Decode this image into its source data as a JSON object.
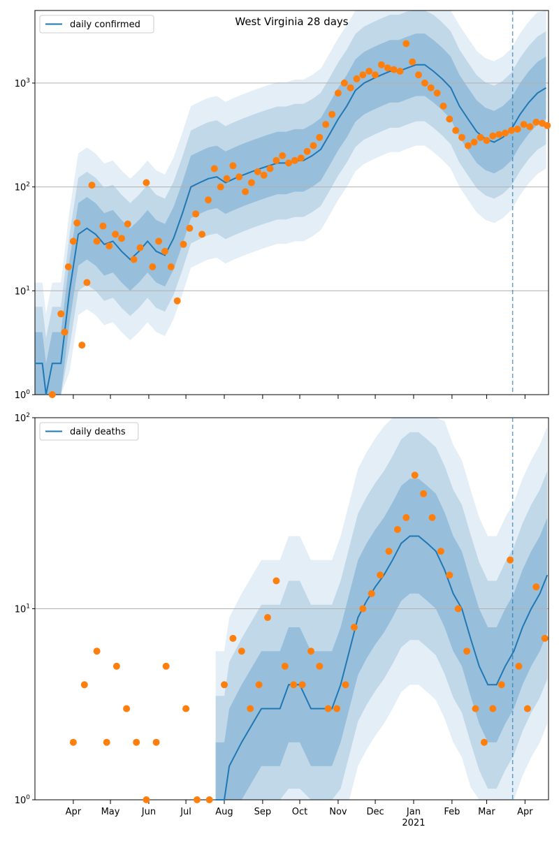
{
  "colors": {
    "line": "#1f77b4",
    "points": "#ff7f0e",
    "band": "#1f77b4",
    "grid": "#b0b0b0",
    "vline": "#1f77b4"
  },
  "chart_data": [
    {
      "type": "line",
      "title": "West Virginia 28 days",
      "scale": "log",
      "ylim": [
        1,
        5000
      ],
      "yticks": [
        {
          "value": 1,
          "label": "10^0"
        },
        {
          "value": 10,
          "label": "10^1"
        },
        {
          "value": 100,
          "label": "10^2"
        },
        {
          "value": 1000,
          "label": "10^3"
        }
      ],
      "grid": "horizontal",
      "legend": {
        "position": "top-left",
        "label": "daily confirmed"
      },
      "x_range": [
        "2020-03-01",
        "2021-04-20"
      ],
      "vline_date": "2021-03-22",
      "series": [
        {
          "name": "daily confirmed",
          "kind": "line",
          "x": [
            "2020-03-01",
            "2020-03-07",
            "2020-03-10",
            "2020-03-15",
            "2020-03-22",
            "2020-03-29",
            "2020-04-05",
            "2020-04-12",
            "2020-04-19",
            "2020-04-26",
            "2020-05-03",
            "2020-05-10",
            "2020-05-17",
            "2020-05-24",
            "2020-05-31",
            "2020-06-07",
            "2020-06-14",
            "2020-06-21",
            "2020-06-28",
            "2020-07-05",
            "2020-07-12",
            "2020-07-19",
            "2020-07-26",
            "2020-08-02",
            "2020-08-09",
            "2020-08-16",
            "2020-08-23",
            "2020-08-30",
            "2020-09-06",
            "2020-09-13",
            "2020-09-20",
            "2020-09-27",
            "2020-10-04",
            "2020-10-11",
            "2020-10-18",
            "2020-10-25",
            "2020-11-01",
            "2020-11-08",
            "2020-11-15",
            "2020-11-22",
            "2020-11-29",
            "2020-12-06",
            "2020-12-13",
            "2020-12-20",
            "2020-12-27",
            "2021-01-03",
            "2021-01-10",
            "2021-01-17",
            "2021-01-24",
            "2021-01-31",
            "2021-02-07",
            "2021-02-14",
            "2021-02-21",
            "2021-02-28",
            "2021-03-07",
            "2021-03-14",
            "2021-03-21",
            "2021-03-28",
            "2021-04-04",
            "2021-04-11",
            "2021-04-18"
          ],
          "y": [
            2,
            2,
            1,
            2,
            2,
            10,
            35,
            40,
            35,
            28,
            30,
            24,
            20,
            24,
            30,
            24,
            22,
            32,
            55,
            100,
            110,
            120,
            125,
            110,
            120,
            130,
            140,
            150,
            160,
            170,
            170,
            180,
            180,
            200,
            230,
            320,
            450,
            600,
            850,
            1000,
            1100,
            1200,
            1300,
            1300,
            1400,
            1500,
            1500,
            1300,
            1100,
            900,
            600,
            450,
            340,
            290,
            270,
            300,
            360,
            500,
            650,
            800,
            900
          ]
        },
        {
          "name": "daily confirmed",
          "kind": "points",
          "x": [
            "2020-03-15",
            "2020-03-22",
            "2020-03-25",
            "2020-03-28",
            "2020-04-01",
            "2020-04-04",
            "2020-04-08",
            "2020-04-12",
            "2020-04-16",
            "2020-04-20",
            "2020-04-25",
            "2020-04-30",
            "2020-05-05",
            "2020-05-10",
            "2020-05-15",
            "2020-05-20",
            "2020-05-25",
            "2020-05-30",
            "2020-06-04",
            "2020-06-09",
            "2020-06-14",
            "2020-06-19",
            "2020-06-24",
            "2020-06-29",
            "2020-07-04",
            "2020-07-09",
            "2020-07-14",
            "2020-07-19",
            "2020-07-24",
            "2020-07-29",
            "2020-08-03",
            "2020-08-08",
            "2020-08-13",
            "2020-08-18",
            "2020-08-23",
            "2020-08-28",
            "2020-09-02",
            "2020-09-07",
            "2020-09-12",
            "2020-09-17",
            "2020-09-22",
            "2020-09-27",
            "2020-10-02",
            "2020-10-07",
            "2020-10-12",
            "2020-10-17",
            "2020-10-22",
            "2020-10-27",
            "2020-11-01",
            "2020-11-06",
            "2020-11-11",
            "2020-11-16",
            "2020-11-21",
            "2020-11-26",
            "2020-12-01",
            "2020-12-06",
            "2020-12-11",
            "2020-12-16",
            "2020-12-21",
            "2020-12-26",
            "2020-12-31",
            "2021-01-05",
            "2021-01-10",
            "2021-01-15",
            "2021-01-20",
            "2021-01-25",
            "2021-01-30",
            "2021-02-04",
            "2021-02-09",
            "2021-02-14",
            "2021-02-19",
            "2021-02-24",
            "2021-03-01",
            "2021-03-06",
            "2021-03-11",
            "2021-03-16",
            "2021-03-21",
            "2021-03-26",
            "2021-03-31",
            "2021-04-05",
            "2021-04-10",
            "2021-04-15",
            "2021-04-19"
          ],
          "y": [
            1,
            6,
            4,
            17,
            30,
            45,
            3,
            12,
            104,
            30,
            42,
            27,
            35,
            32,
            44,
            20,
            26,
            110,
            17,
            30,
            24,
            17,
            8,
            28,
            40,
            55,
            35,
            75,
            150,
            100,
            120,
            160,
            125,
            90,
            110,
            140,
            130,
            150,
            180,
            200,
            170,
            180,
            190,
            220,
            250,
            300,
            400,
            500,
            800,
            1000,
            900,
            1100,
            1200,
            1300,
            1200,
            1500,
            1400,
            1350,
            1300,
            2400,
            1600,
            1200,
            1000,
            900,
            800,
            600,
            450,
            350,
            300,
            250,
            270,
            300,
            280,
            310,
            320,
            330,
            350,
            360,
            400,
            380,
            420,
            410,
            390
          ]
        }
      ]
    },
    {
      "type": "line",
      "title": "",
      "scale": "log",
      "ylim": [
        1,
        100
      ],
      "yticks": [
        {
          "value": 1,
          "label": "10^0"
        },
        {
          "value": 10,
          "label": "10^1"
        },
        {
          "value": 100,
          "label": "10^2"
        }
      ],
      "grid": "horizontal",
      "legend": {
        "position": "top-left",
        "label": "daily deaths"
      },
      "x_range": [
        "2020-03-01",
        "2021-04-20"
      ],
      "vline_date": "2021-03-22",
      "xticks": [
        {
          "date": "2020-04-01",
          "label": "Apr"
        },
        {
          "date": "2020-05-01",
          "label": "May"
        },
        {
          "date": "2020-06-01",
          "label": "Jun"
        },
        {
          "date": "2020-07-01",
          "label": "Jul"
        },
        {
          "date": "2020-08-01",
          "label": "Aug"
        },
        {
          "date": "2020-09-01",
          "label": "Sep"
        },
        {
          "date": "2020-10-01",
          "label": "Oct"
        },
        {
          "date": "2020-11-01",
          "label": "Nov"
        },
        {
          "date": "2020-12-01",
          "label": "Dec"
        },
        {
          "date": "2021-01-01",
          "label": "Jan",
          "sublabel": "2021"
        },
        {
          "date": "2021-02-01",
          "label": "Feb"
        },
        {
          "date": "2021-03-01",
          "label": "Mar"
        },
        {
          "date": "2021-04-01",
          "label": "Apr"
        }
      ],
      "series": [
        {
          "name": "daily deaths",
          "kind": "line",
          "x": [
            "2020-07-25",
            "2020-08-01",
            "2020-08-05",
            "2020-08-15",
            "2020-08-31",
            "2020-09-15",
            "2020-09-22",
            "2020-10-01",
            "2020-10-10",
            "2020-10-20",
            "2020-10-27",
            "2020-11-03",
            "2020-11-10",
            "2020-11-17",
            "2020-11-24",
            "2020-12-01",
            "2020-12-08",
            "2020-12-15",
            "2020-12-22",
            "2020-12-29",
            "2021-01-05",
            "2021-01-12",
            "2021-01-19",
            "2021-01-26",
            "2021-02-02",
            "2021-02-09",
            "2021-02-16",
            "2021-02-23",
            "2021-03-02",
            "2021-03-09",
            "2021-03-16",
            "2021-03-23",
            "2021-03-30",
            "2021-04-06",
            "2021-04-13",
            "2021-04-19"
          ],
          "y": [
            1,
            1,
            1.5,
            2,
            3,
            3,
            4,
            4,
            3,
            3,
            3,
            4,
            6,
            9,
            11,
            13,
            15,
            18,
            22,
            24,
            24,
            22,
            20,
            16,
            12,
            10,
            7,
            5,
            4,
            4,
            5,
            6,
            8,
            10,
            12,
            15
          ]
        },
        {
          "name": "daily deaths",
          "kind": "points",
          "x": [
            "2020-04-01",
            "2020-04-10",
            "2020-04-20",
            "2020-04-28",
            "2020-05-06",
            "2020-05-14",
            "2020-05-22",
            "2020-05-30",
            "2020-06-07",
            "2020-06-15",
            "2020-07-01",
            "2020-07-10",
            "2020-07-20",
            "2020-08-01",
            "2020-08-08",
            "2020-08-15",
            "2020-08-22",
            "2020-08-29",
            "2020-09-05",
            "2020-09-12",
            "2020-09-19",
            "2020-09-26",
            "2020-10-03",
            "2020-10-10",
            "2020-10-17",
            "2020-10-24",
            "2020-10-31",
            "2020-11-07",
            "2020-11-14",
            "2020-11-21",
            "2020-11-28",
            "2020-12-05",
            "2020-12-12",
            "2020-12-19",
            "2020-12-26",
            "2021-01-02",
            "2021-01-09",
            "2021-01-16",
            "2021-01-23",
            "2021-01-30",
            "2021-02-06",
            "2021-02-13",
            "2021-02-20",
            "2021-02-27",
            "2021-03-06",
            "2021-03-13",
            "2021-03-20",
            "2021-03-27",
            "2021-04-03",
            "2021-04-10",
            "2021-04-17"
          ],
          "y": [
            2,
            4,
            6,
            2,
            5,
            3,
            2,
            1,
            2,
            5,
            3,
            1,
            1,
            4,
            7,
            6,
            3,
            4,
            9,
            14,
            5,
            4,
            4,
            6,
            5,
            3,
            3,
            4,
            8,
            10,
            12,
            15,
            20,
            26,
            30,
            50,
            40,
            30,
            20,
            15,
            10,
            6,
            3,
            2,
            3,
            4,
            18,
            5,
            3,
            13,
            7
          ]
        }
      ]
    }
  ]
}
